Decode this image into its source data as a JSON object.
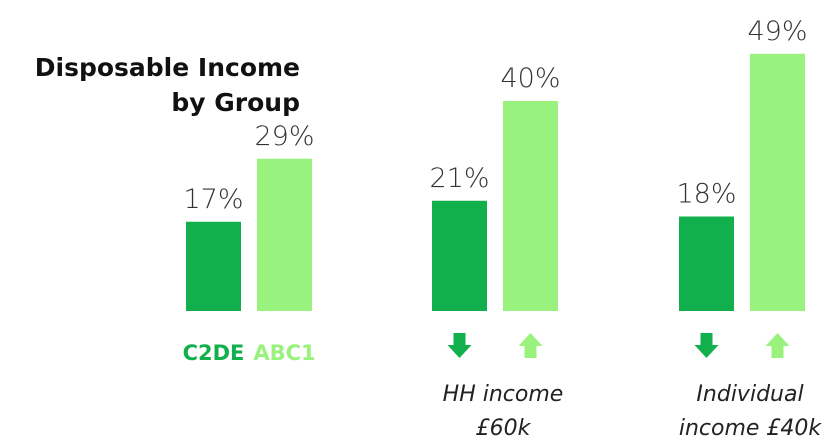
{
  "chart_data": {
    "type": "bar",
    "title": "Disposable Income by Group",
    "categories": [
      null,
      "HH income £60k",
      "Individual income £40k"
    ],
    "series": [
      {
        "name": "C2DE",
        "color": "#12b04c",
        "values": [
          17,
          21,
          18
        ],
        "value_labels": [
          "17%",
          "21%",
          "18%"
        ]
      },
      {
        "name": "ABC1",
        "color": "#9af27e",
        "values": [
          29,
          40,
          49
        ],
        "value_labels": [
          "29%",
          "40%",
          "49%"
        ]
      }
    ]
  }
}
